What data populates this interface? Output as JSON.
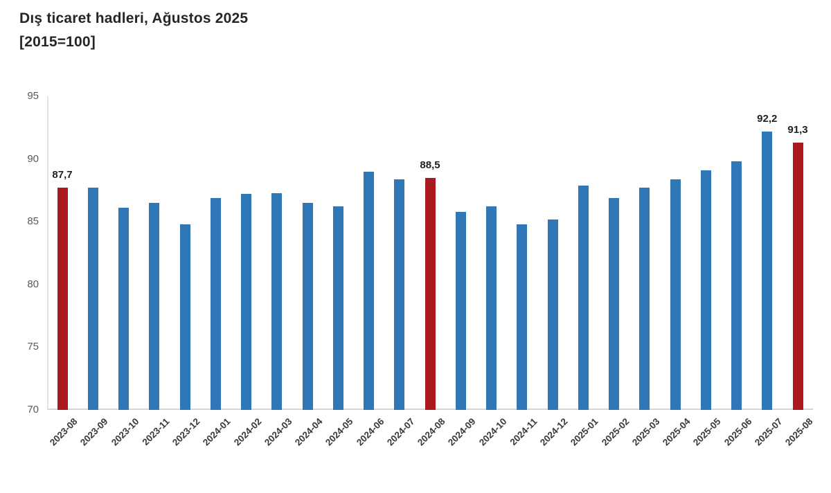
{
  "page": {
    "title_line1": "Dış ticaret hadleri, Ağustos 2025",
    "title_line2": "[2015=100]"
  },
  "chart_data": {
    "type": "bar",
    "title": "Dış ticaret hadleri, Ağustos 2025",
    "subtitle": "[2015=100]",
    "categories": [
      "2023-08",
      "2023-09",
      "2023-10",
      "2023-11",
      "2023-12",
      "2024-01",
      "2024-02",
      "2024-03",
      "2024-04",
      "2024-05",
      "2024-06",
      "2024-07",
      "2024-08",
      "2024-09",
      "2024-10",
      "2024-11",
      "2024-12",
      "2025-01",
      "2025-02",
      "2025-03",
      "2025-04",
      "2025-05",
      "2025-06",
      "2025-07",
      "2025-08"
    ],
    "values": [
      87.7,
      87.7,
      86.1,
      86.5,
      84.8,
      86.9,
      87.2,
      87.3,
      86.5,
      86.2,
      89.0,
      88.4,
      88.5,
      85.8,
      86.2,
      84.8,
      85.2,
      87.9,
      86.9,
      87.7,
      88.4,
      89.1,
      89.8,
      92.2,
      91.3
    ],
    "highlight_indices": [
      0,
      12,
      24
    ],
    "data_labels": {
      "0": "87,7",
      "12": "88,5",
      "23": "92,2",
      "24": "91,3"
    },
    "yticks": [
      70,
      75,
      80,
      85,
      90,
      95
    ],
    "ylim": [
      70,
      95
    ],
    "grid": false,
    "legend": false,
    "xlabel": "",
    "ylabel": "",
    "colors": {
      "bar": "#2F77B6",
      "highlight": "#A91A20",
      "axis_line": "#D6D6D6",
      "tick_text": "#595959",
      "xlabel_text": "#3A3A3A",
      "value_label_text": "#1F1F1F"
    }
  }
}
